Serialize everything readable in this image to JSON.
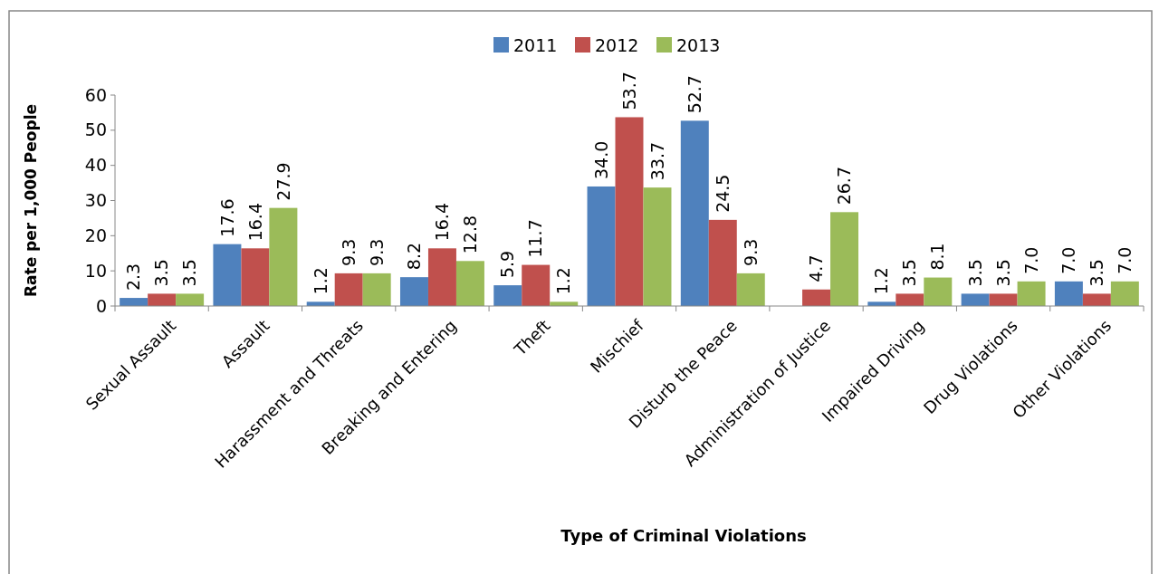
{
  "chart_data": {
    "type": "bar",
    "xlabel": "Type of Criminal Violations",
    "ylabel": "Rate per 1,000 People",
    "categories": [
      "Sexual Assault",
      "Assault",
      "Harassment and Threats",
      "Breaking and Entering",
      "Theft",
      "Mischief",
      "Disturb the Peace",
      "Administration of Justice",
      "Impaired Driving",
      "Drug Violations",
      "Other Violations"
    ],
    "series": [
      {
        "name": "2011",
        "color": "#4f81bd",
        "values": [
          2.3,
          17.6,
          1.2,
          8.2,
          5.9,
          34.0,
          52.7,
          null,
          1.2,
          3.5,
          7.0
        ],
        "value_labels": [
          "2.3",
          "17.6",
          "1.2",
          "8.2",
          "5.9",
          "34.0",
          "52.7",
          null,
          "1.2",
          "3.5",
          "7.0"
        ]
      },
      {
        "name": "2012",
        "color": "#c0504d",
        "values": [
          3.5,
          16.4,
          9.3,
          16.4,
          11.7,
          53.7,
          24.5,
          4.7,
          3.5,
          3.5,
          3.5
        ],
        "value_labels": [
          "3.5",
          "16.4",
          "9.3",
          "16.4",
          "11.7",
          "53.7",
          "24.5",
          "4.7",
          "3.5",
          "3.5",
          "3.5"
        ]
      },
      {
        "name": "2013",
        "color": "#9bbb59",
        "values": [
          3.5,
          27.9,
          9.3,
          12.8,
          1.2,
          33.7,
          9.3,
          26.7,
          8.1,
          7.0,
          7.0
        ],
        "value_labels": [
          "3.5",
          "27.9",
          "9.3",
          "12.8",
          "1.2",
          "33.7",
          "9.3",
          "26.7",
          "8.1",
          "7.0",
          "7.0"
        ]
      }
    ],
    "ylim": [
      0,
      60
    ],
    "yticks": [
      0,
      10,
      20,
      30,
      40,
      50,
      60
    ],
    "grid": false,
    "legend": "top"
  }
}
